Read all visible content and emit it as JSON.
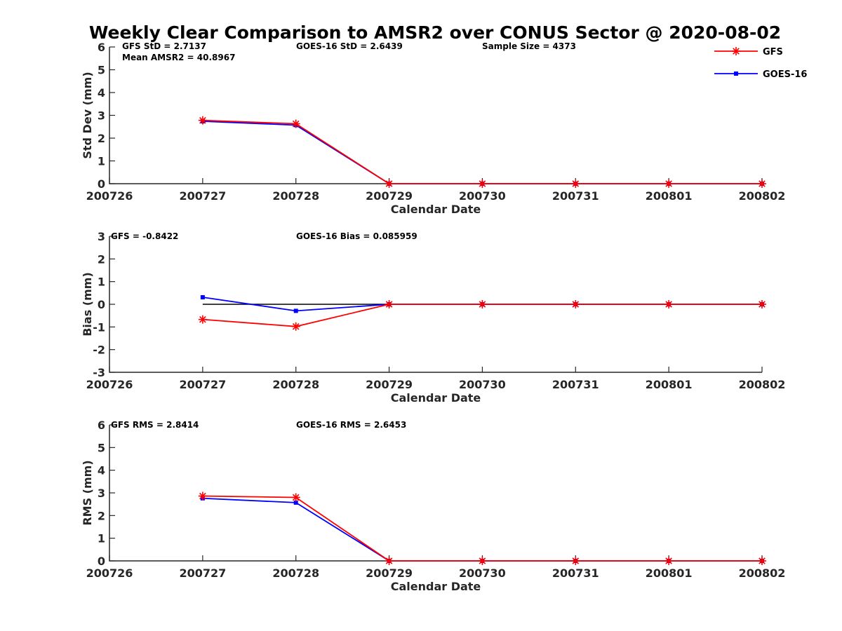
{
  "chart_data": {
    "type": "line",
    "title": "Weekly Clear Comparison to AMSR2 over CONUS Sector @ 2020-08-02",
    "categories": [
      "200726",
      "200727",
      "200728",
      "200729",
      "200730",
      "200731",
      "200801",
      "200802"
    ],
    "colors": {
      "GFS": "#ff0000",
      "GOES-16": "#0000ff",
      "zero_line": "#000000"
    },
    "legend": {
      "placement": "top-right",
      "entries": [
        {
          "name": "GFS",
          "marker": "asterisk"
        },
        {
          "name": "GOES-16",
          "marker": "square"
        }
      ]
    },
    "panels": [
      {
        "id": "std",
        "ylabel": "Std Dev (mm)",
        "xlabel": "Calendar Date",
        "ylim": [
          0,
          6
        ],
        "yticks": [
          0,
          1,
          2,
          3,
          4,
          5,
          6
        ],
        "annotations": [
          "GFS StD = 2.7137",
          "Mean AMSR2 = 40.8967",
          "GOES-16 StD = 2.6439",
          "Sample Size = 4373"
        ],
        "series": [
          {
            "name": "GFS",
            "values": [
              null,
              2.78,
              2.63,
              0,
              0,
              0,
              0,
              0
            ]
          },
          {
            "name": "GOES-16",
            "values": [
              null,
              2.74,
              2.57,
              0,
              0,
              0,
              0,
              0
            ]
          }
        ]
      },
      {
        "id": "bias",
        "ylabel": "Bias (mm)",
        "xlabel": "Calendar Date",
        "ylim": [
          -3,
          3
        ],
        "yticks": [
          -3,
          -2,
          -1,
          0,
          1,
          2,
          3
        ],
        "zero_line": true,
        "annotations": [
          "GFS = -0.8422",
          "GOES-16 Bias  = 0.085959"
        ],
        "series": [
          {
            "name": "GFS",
            "values": [
              null,
              -0.67,
              -0.98,
              0,
              0,
              0,
              0,
              0
            ]
          },
          {
            "name": "GOES-16",
            "values": [
              null,
              0.31,
              -0.29,
              0,
              0,
              0,
              0,
              0
            ]
          }
        ]
      },
      {
        "id": "rms",
        "ylabel": "RMS (mm)",
        "xlabel": "Calendar Date",
        "ylim": [
          0,
          6
        ],
        "yticks": [
          0,
          1,
          2,
          3,
          4,
          5,
          6
        ],
        "annotations": [
          "GFS RMS = 2.8414",
          "GOES-16 RMS = 2.6453"
        ],
        "series": [
          {
            "name": "GFS",
            "values": [
              null,
              2.86,
              2.8,
              0,
              0,
              0,
              0,
              0
            ]
          },
          {
            "name": "GOES-16",
            "values": [
              null,
              2.76,
              2.57,
              0,
              0,
              0,
              0,
              0
            ]
          }
        ]
      }
    ]
  }
}
